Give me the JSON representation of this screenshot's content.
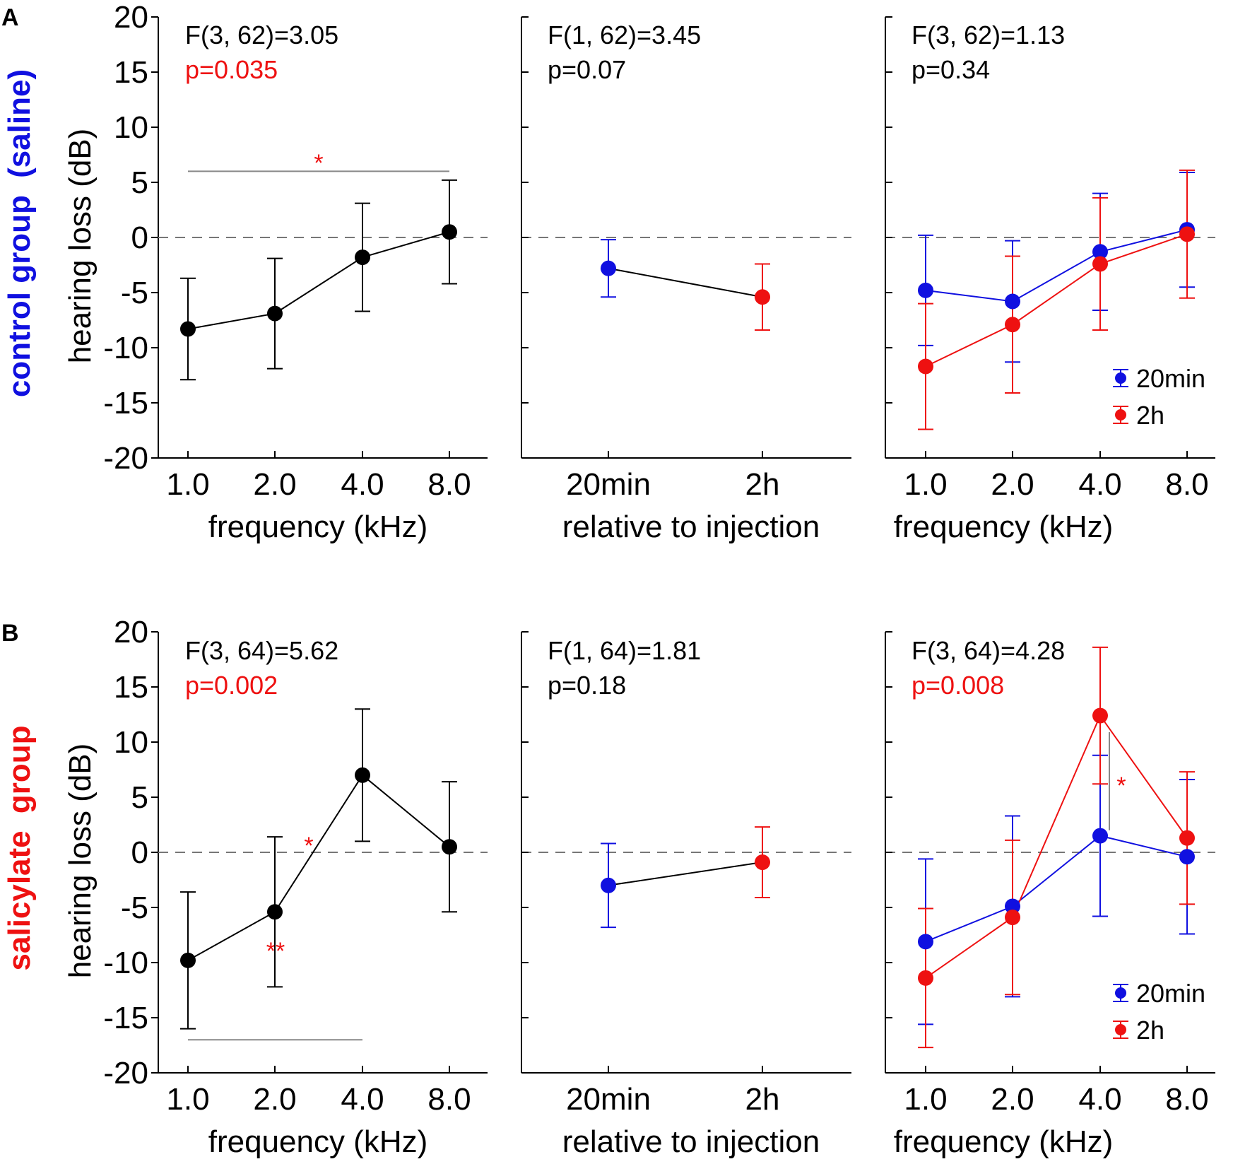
{
  "colors": {
    "black": "#000000",
    "blue": "#1010e0",
    "red": "#ee1111",
    "grey": "#888888",
    "zero_line": "#777777"
  },
  "y_axis": {
    "label": "hearing loss (dB)",
    "ticks": [
      "20",
      "15",
      "10",
      "5",
      "0",
      "-5",
      "-10",
      "-15",
      "-20"
    ],
    "ylim": [
      -20,
      20
    ]
  },
  "rows": [
    {
      "panel_letter": "A",
      "row_label_part1": "control group",
      "row_label_part2": "(saline)",
      "part1_color": "blue",
      "part2_color": "blue",
      "panels": [
        {
          "stat_line1": "F(3, 62)=3.05",
          "stat_line2": "p=0.035",
          "stat_line2_color": "red",
          "x_label": "frequency (kHz)"
        },
        {
          "stat_line1": "F(1, 62)=3.45",
          "stat_line2": "p=0.07",
          "stat_line2_color": "black",
          "x_label": "relative to injection"
        },
        {
          "stat_line1": "F(3, 62)=1.13",
          "stat_line2": "p=0.34",
          "stat_line2_color": "black",
          "x_label": "frequency (kHz)"
        }
      ],
      "star_labels": [
        "*"
      ]
    },
    {
      "panel_letter": "B",
      "row_label_part1": "salicylate",
      "row_label_part2": "group",
      "part1_color": "red",
      "part2_color": "red",
      "panels": [
        {
          "stat_line1": "F(3, 64)=5.62",
          "stat_line2": "p=0.002",
          "stat_line2_color": "red",
          "x_label": "frequency (kHz)"
        },
        {
          "stat_line1": "F(1, 64)=1.81",
          "stat_line2": "p=0.18",
          "stat_line2_color": "black",
          "x_label": "relative to injection"
        },
        {
          "stat_line1": "F(3, 64)=4.28",
          "stat_line2": "p=0.008",
          "stat_line2_color": "red",
          "x_label": "frequency (kHz)"
        }
      ],
      "star_labels": [
        "**",
        "*",
        "*"
      ]
    }
  ],
  "legend": {
    "items": [
      {
        "label": "20min",
        "color": "blue"
      },
      {
        "label": "2h",
        "color": "red"
      }
    ]
  },
  "chart_data": [
    {
      "type": "line",
      "row": "A",
      "panel": "frequency",
      "x_categories": [
        "1.0",
        "2.0",
        "4.0",
        "8.0"
      ],
      "series": [
        {
          "name": "all",
          "color": "black",
          "values": [
            -8.3,
            -6.9,
            -1.8,
            0.5
          ],
          "errors": [
            4.6,
            5.0,
            4.9,
            4.7
          ]
        }
      ],
      "ylim": [
        -20,
        20
      ],
      "significance": [
        {
          "from": 0,
          "to": 3,
          "label": "*",
          "y": 6.0
        }
      ]
    },
    {
      "type": "line",
      "row": "A",
      "panel": "time",
      "x_categories": [
        "20min",
        "2h"
      ],
      "points": [
        {
          "x": 0,
          "value": -2.8,
          "error": 2.6,
          "color": "blue"
        },
        {
          "x": 1,
          "value": -5.4,
          "error": 3.0,
          "color": "red"
        }
      ],
      "ylim": [
        -20,
        20
      ]
    },
    {
      "type": "line",
      "row": "A",
      "panel": "interaction",
      "x_categories": [
        "1.0",
        "2.0",
        "4.0",
        "8.0"
      ],
      "series": [
        {
          "name": "20min",
          "color": "blue",
          "values": [
            -4.8,
            -5.8,
            -1.3,
            0.7
          ],
          "errors": [
            5.0,
            5.5,
            5.3,
            5.2
          ]
        },
        {
          "name": "2h",
          "color": "red",
          "values": [
            -11.7,
            -7.9,
            -2.4,
            0.3
          ],
          "errors": [
            5.7,
            6.2,
            6.0,
            5.8
          ]
        }
      ],
      "ylim": [
        -20,
        20
      ]
    },
    {
      "type": "line",
      "row": "B",
      "panel": "frequency",
      "x_categories": [
        "1.0",
        "2.0",
        "4.0",
        "8.0"
      ],
      "series": [
        {
          "name": "all",
          "color": "black",
          "values": [
            -9.8,
            -5.4,
            7.0,
            0.5
          ],
          "errors": [
            6.2,
            6.8,
            6.0,
            5.9
          ]
        }
      ],
      "ylim": [
        -20,
        20
      ],
      "significance": [
        {
          "from": 0,
          "to": 2,
          "label": "**",
          "y": -17.0
        }
      ]
    },
    {
      "type": "line",
      "row": "B",
      "panel": "time",
      "x_categories": [
        "20min",
        "2h"
      ],
      "points": [
        {
          "x": 0,
          "value": -3.0,
          "error": 3.8,
          "color": "blue"
        },
        {
          "x": 1,
          "value": -0.9,
          "error": 3.2,
          "color": "red"
        }
      ],
      "ylim": [
        -20,
        20
      ]
    },
    {
      "type": "line",
      "row": "B",
      "panel": "interaction",
      "x_categories": [
        "1.0",
        "2.0",
        "4.0",
        "8.0"
      ],
      "series": [
        {
          "name": "20min",
          "color": "blue",
          "values": [
            -8.1,
            -4.9,
            1.5,
            -0.4
          ],
          "errors": [
            7.5,
            8.2,
            7.3,
            7.0
          ]
        },
        {
          "name": "2h",
          "color": "red",
          "values": [
            -11.4,
            -5.9,
            12.4,
            1.3
          ],
          "errors": [
            6.3,
            7.0,
            6.2,
            6.0
          ]
        }
      ],
      "ylim": [
        -20,
        20
      ]
    }
  ]
}
